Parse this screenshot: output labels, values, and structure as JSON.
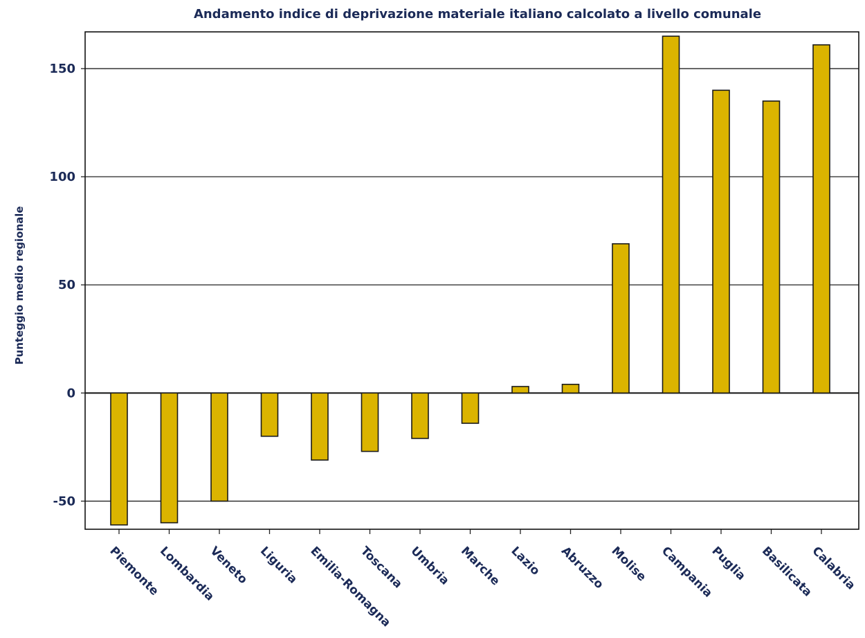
{
  "chart_data": {
    "type": "bar",
    "title": "Andamento indice di deprivazione materiale italiano calcolato a livello comunale",
    "xlabel": "",
    "ylabel": "Punteggio medio regionale",
    "categories": [
      "Piemonte",
      "Lombardia",
      "Veneto",
      "Liguria",
      "Emilia-Romagna",
      "Toscana",
      "Umbria",
      "Marche",
      "Lazio",
      "Abruzzo",
      "Molise",
      "Campania",
      "Puglia",
      "Basilicata",
      "Calabria"
    ],
    "values": [
      -61,
      -60,
      -50,
      -20,
      -31,
      -27,
      -21,
      -14,
      3,
      4,
      69,
      165,
      140,
      135,
      161
    ],
    "ylim": [
      -63,
      167
    ],
    "yticks": [
      -50,
      0,
      50,
      100,
      150
    ],
    "grid": true,
    "bar_color": "#dbb400",
    "bar_edge_color": "#1a1a1a",
    "text_color": "#1b2a57"
  }
}
